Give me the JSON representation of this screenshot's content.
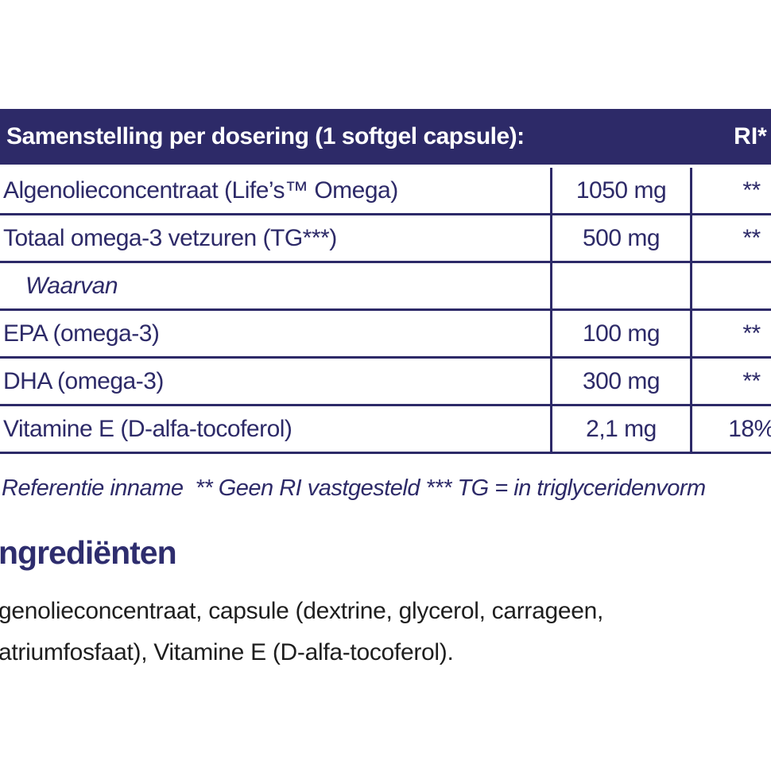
{
  "colors": {
    "navy": "#2d2a68",
    "heading_navy": "#2e2d6e",
    "body_text": "#1e1e1e",
    "background": "#ffffff"
  },
  "table": {
    "header": {
      "title": "Samenstelling per dosering (1 softgel capsule):",
      "ri_column_label": "RI*"
    },
    "rows": [
      {
        "name": "Algenolieconcentraat (Life’s™ Omega)",
        "amount": "1050 mg",
        "ri": "**"
      },
      {
        "name": "Totaal omega-3 vetzuren (TG***)",
        "amount": "500 mg",
        "ri": "**"
      },
      {
        "name": "Waarvan",
        "amount": "",
        "ri": ""
      },
      {
        "name": "EPA (omega-3)",
        "amount": "100 mg",
        "ri": "**"
      },
      {
        "name": "DHA (omega-3)",
        "amount": "300 mg",
        "ri": "**"
      },
      {
        "name": "Vitamine E (D-alfa-tocoferol)",
        "amount": "2,1 mg",
        "ri": "18%"
      }
    ]
  },
  "footnote": "Referentie inname  ** Geen RI vastgesteld *** TG = in triglyceridenvorm",
  "ingredients": {
    "heading": "ngrediënten",
    "line1": "genolieconcentraat, capsule (dextrine, glycerol, carrageen,",
    "line2": "atriumfosfaat), Vitamine E (D-alfa-tocoferol)."
  }
}
